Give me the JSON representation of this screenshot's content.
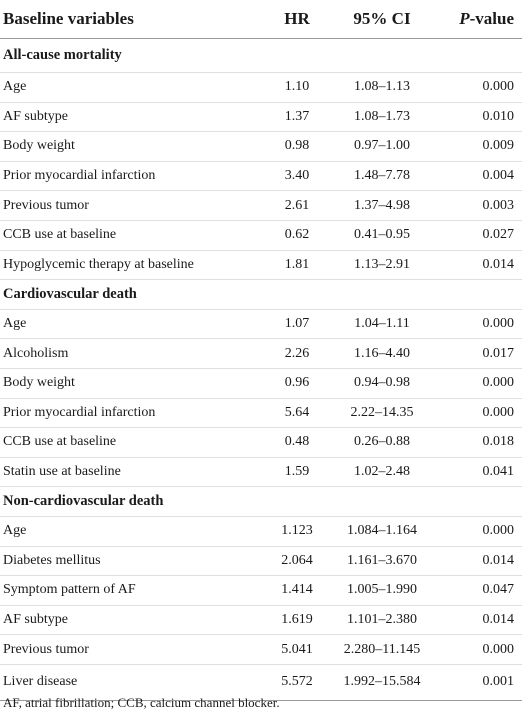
{
  "headers": {
    "variable": "Baseline variables",
    "hr": "HR",
    "ci": "95% CI",
    "p_italic": "P",
    "p_rest": "-value"
  },
  "rows": [
    {
      "type": "section",
      "name": "All-cause mortality"
    },
    {
      "type": "data",
      "name": "Age",
      "hr": "1.10",
      "ci": "1.08–1.13",
      "p": "0.000"
    },
    {
      "type": "data",
      "name": "AF subtype",
      "hr": "1.37",
      "ci": "1.08–1.73",
      "p": "0.010"
    },
    {
      "type": "data",
      "name": "Body weight",
      "hr": "0.98",
      "ci": "0.97–1.00",
      "p": "0.009"
    },
    {
      "type": "data",
      "name": "Prior myocardial infarction",
      "hr": "3.40",
      "ci": "1.48–7.78",
      "p": "0.004"
    },
    {
      "type": "data",
      "name": "Previous tumor",
      "hr": "2.61",
      "ci": "1.37–4.98",
      "p": "0.003"
    },
    {
      "type": "data",
      "name": "CCB use at baseline",
      "hr": "0.62",
      "ci": "0.41–0.95",
      "p": "0.027"
    },
    {
      "type": "data",
      "name": "Hypoglycemic therapy at baseline",
      "hr": "1.81",
      "ci": "1.13–2.91",
      "p": "0.014"
    },
    {
      "type": "section",
      "name": "Cardiovascular death"
    },
    {
      "type": "data",
      "name": "Age",
      "hr": "1.07",
      "ci": "1.04–1.11",
      "p": "0.000"
    },
    {
      "type": "data",
      "name": "Alcoholism",
      "hr": "2.26",
      "ci": "1.16–4.40",
      "p": "0.017"
    },
    {
      "type": "data",
      "name": "Body weight",
      "hr": "0.96",
      "ci": "0.94–0.98",
      "p": "0.000"
    },
    {
      "type": "data",
      "name": "Prior myocardial infarction",
      "hr": "5.64",
      "ci": "2.22–14.35",
      "p": "0.000"
    },
    {
      "type": "data",
      "name": "CCB use at baseline",
      "hr": "0.48",
      "ci": "0.26–0.88",
      "p": "0.018"
    },
    {
      "type": "data",
      "name": "Statin use at baseline",
      "hr": "1.59",
      "ci": "1.02–2.48",
      "p": "0.041"
    },
    {
      "type": "section",
      "name": "Non-cardiovascular death"
    },
    {
      "type": "data",
      "name": "Age",
      "hr": "1.123",
      "ci": "1.084–1.164",
      "p": "0.000"
    },
    {
      "type": "data",
      "name": "Diabetes mellitus",
      "hr": "2.064",
      "ci": "1.161–3.670",
      "p": "0.014"
    },
    {
      "type": "data",
      "name": "Symptom pattern of AF",
      "hr": "1.414",
      "ci": "1.005–1.990",
      "p": "0.047"
    },
    {
      "type": "data",
      "name": "AF subtype",
      "hr": "1.619",
      "ci": "1.101–2.380",
      "p": "0.014"
    },
    {
      "type": "data",
      "name": "Previous tumor",
      "hr": "5.041",
      "ci": "2.280–11.145",
      "p": "0.000"
    },
    {
      "type": "data",
      "name": "Liver disease",
      "hr": "5.572",
      "ci": "1.992–15.584",
      "p": "0.001"
    }
  ],
  "footnote": "AF, atrial fibrillation; CCB, calcium channel blocker."
}
